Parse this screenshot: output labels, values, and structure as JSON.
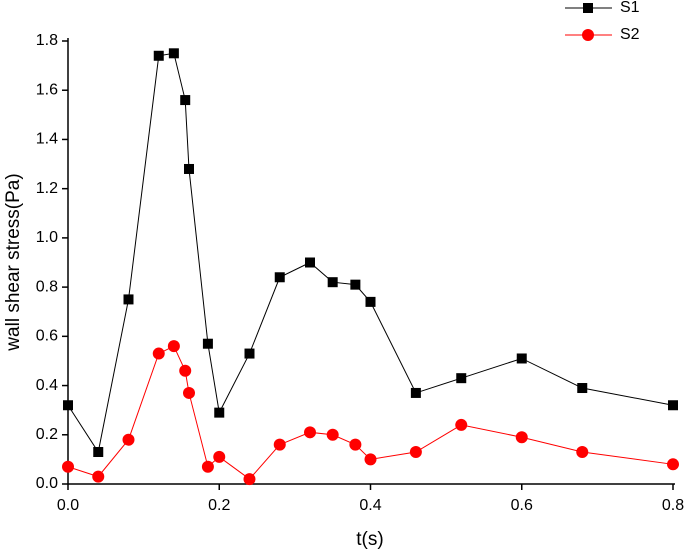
{
  "chart_data": {
    "type": "line",
    "x_label": "t(s)",
    "y_label": "wall shear stress(Pa)",
    "xlim": [
      0,
      0.8
    ],
    "ylim": [
      0,
      1.8
    ],
    "xticks": [
      {
        "value": 0,
        "label": "0.0"
      },
      0.2,
      0.4,
      0.6,
      0.8
    ],
    "yticks": [
      {
        "value": 0,
        "label": "0.0"
      },
      0.2,
      0.4,
      0.6,
      0.8,
      {
        "value": 1,
        "label": "1.0"
      },
      1.2,
      1.4,
      1.6,
      1.8
    ],
    "legend": "top-right",
    "series": [
      {
        "name": "S1",
        "color": "#000000",
        "marker": "square",
        "x": [
          0,
          0.04,
          0.08,
          0.12,
          0.14,
          0.155,
          0.16,
          0.185,
          0.2,
          0.24,
          0.28,
          0.32,
          0.35,
          0.38,
          0.4,
          0.46,
          0.52,
          0.6,
          0.68,
          0.8
        ],
        "values": [
          0.32,
          0.13,
          0.75,
          1.74,
          1.75,
          1.56,
          1.28,
          0.57,
          0.29,
          0.53,
          0.84,
          0.9,
          0.82,
          0.81,
          0.74,
          0.37,
          0.43,
          0.51,
          0.39,
          0.32
        ]
      },
      {
        "name": "S2",
        "color": "#ff0000",
        "marker": "circle",
        "x": [
          0,
          0.04,
          0.08,
          0.12,
          0.14,
          0.155,
          0.16,
          0.185,
          0.2,
          0.24,
          0.28,
          0.32,
          0.35,
          0.38,
          0.4,
          0.46,
          0.52,
          0.6,
          0.68,
          0.8
        ],
        "values": [
          0.07,
          0.03,
          0.18,
          0.53,
          0.56,
          0.46,
          0.37,
          0.07,
          0.11,
          0.02,
          0.16,
          0.21,
          0.2,
          0.16,
          0.1,
          0.13,
          0.24,
          0.19,
          0.13,
          0.08
        ]
      }
    ]
  }
}
